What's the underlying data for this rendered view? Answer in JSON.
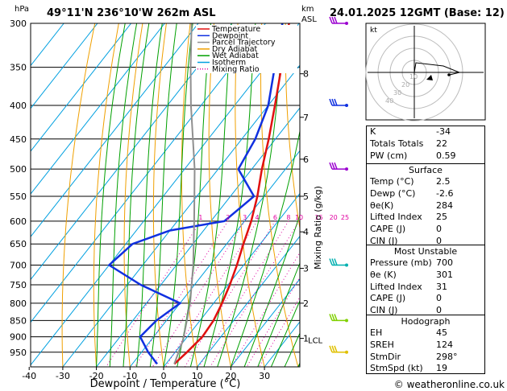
{
  "header": {
    "location": "49°11'N  236°10'W  262m  ASL",
    "datetime": "24.01.2025  12GMT  (Base: 12)",
    "pressure_unit": "hPa",
    "height_unit": "km",
    "height_unit2": "ASL",
    "footer": "© weatheronline.co.uk"
  },
  "chart_data": {
    "type": "line",
    "title": "Skew-T log-P diagram",
    "xlabel": "Dewpoint / Temperature (°C)",
    "ylabel_right": "Mixing Ratio (g/kg)",
    "x_ticks": [
      -40,
      -30,
      -20,
      -10,
      0,
      10,
      20,
      30
    ],
    "pressure_levels": [
      300,
      350,
      400,
      450,
      500,
      550,
      600,
      650,
      700,
      750,
      800,
      850,
      900,
      950
    ],
    "height_km_ticks": [
      {
        "label": "8",
        "p": 358
      },
      {
        "label": "7",
        "p": 417
      },
      {
        "label": "6",
        "p": 483
      },
      {
        "label": "5",
        "p": 550
      },
      {
        "label": "4",
        "p": 623
      },
      {
        "label": "3",
        "p": 708
      },
      {
        "label": "2",
        "p": 800
      },
      {
        "label": "1",
        "p": 905
      }
    ],
    "lcl": {
      "label": "LCL",
      "p": 910
    },
    "mixing_ratio_labels": [
      "1",
      "2",
      "3",
      "4",
      "6",
      "8",
      "10",
      "15",
      "20",
      "25"
    ],
    "mixing_ratio_values": [
      1,
      2,
      3,
      4,
      6,
      8,
      10,
      15,
      20,
      25
    ],
    "legend": [
      {
        "name": "Temperature",
        "color": "#e01010"
      },
      {
        "name": "Dewpoint",
        "color": "#1030e0"
      },
      {
        "name": "Parcel Trajectory",
        "color": "#909090"
      },
      {
        "name": "Dry Adiabat",
        "color": "#f0a000"
      },
      {
        "name": "Wet Adiabat",
        "color": "#00a000"
      },
      {
        "name": "Isotherm",
        "color": "#00a0e0"
      },
      {
        "name": "Mixing Ratio",
        "color": "#e000a0"
      }
    ],
    "series": [
      {
        "name": "Temperature",
        "color": "#e01010",
        "points": [
          [
            2.5,
            990
          ],
          [
            3.5,
            950
          ],
          [
            4.5,
            900
          ],
          [
            4.0,
            850
          ],
          [
            2.5,
            800
          ],
          [
            0.5,
            750
          ],
          [
            -2,
            700
          ],
          [
            -5,
            650
          ],
          [
            -8,
            600
          ],
          [
            -12,
            550
          ],
          [
            -17,
            500
          ],
          [
            -22,
            450
          ],
          [
            -28,
            400
          ],
          [
            -35,
            350
          ],
          [
            -43,
            300
          ]
        ]
      },
      {
        "name": "Dewpoint",
        "color": "#1030e0",
        "points": [
          [
            -2.6,
            990
          ],
          [
            -8,
            950
          ],
          [
            -14,
            900
          ],
          [
            -13,
            850
          ],
          [
            -10,
            800
          ],
          [
            -26,
            750
          ],
          [
            -40,
            700
          ],
          [
            -38,
            650
          ],
          [
            -30,
            620
          ],
          [
            -16,
            600
          ],
          [
            -13,
            550
          ],
          [
            -24,
            500
          ],
          [
            -26,
            450
          ],
          [
            -30,
            400
          ],
          [
            -37,
            350
          ],
          [
            -45,
            300
          ]
        ]
      },
      {
        "name": "Parcel Trajectory",
        "color": "#909090",
        "points": [
          [
            2.5,
            990
          ],
          [
            -0.5,
            910
          ],
          [
            -7,
            800
          ],
          [
            -15,
            700
          ],
          [
            -25,
            600
          ],
          [
            -37,
            500
          ],
          [
            -53,
            400
          ],
          [
            -62,
            350
          ],
          [
            -72,
            300
          ]
        ]
      }
    ]
  },
  "hodograph": {
    "label": "kt",
    "ring_labels": [
      "10",
      "20",
      "30",
      "40"
    ]
  },
  "indices": {
    "rows": [
      {
        "k": "K",
        "v": "-34"
      },
      {
        "k": "Totals Totals",
        "v": "22"
      },
      {
        "k": "PW (cm)",
        "v": "0.59"
      }
    ]
  },
  "surface": {
    "title": "Surface",
    "rows": [
      {
        "k": "Temp (°C)",
        "v": "2.5"
      },
      {
        "k": "Dewp (°C)",
        "v": "-2.6"
      },
      {
        "k": "θe(K)",
        "v": "284"
      },
      {
        "k": "Lifted Index",
        "v": "25"
      },
      {
        "k": "CAPE (J)",
        "v": "0"
      },
      {
        "k": "CIN (J)",
        "v": "0"
      }
    ]
  },
  "most_unstable": {
    "title": "Most Unstable",
    "rows": [
      {
        "k": "Pressure (mb)",
        "v": "700"
      },
      {
        "k": "θe (K)",
        "v": "301"
      },
      {
        "k": "Lifted Index",
        "v": "31"
      },
      {
        "k": "CAPE (J)",
        "v": "0"
      },
      {
        "k": "CIN (J)",
        "v": "0"
      }
    ]
  },
  "hodo_table": {
    "title": "Hodograph",
    "rows": [
      {
        "k": "EH",
        "v": "45"
      },
      {
        "k": "SREH",
        "v": "124"
      },
      {
        "k": "StmDir",
        "v": "298°"
      },
      {
        "k": "StmSpd (kt)",
        "v": "19"
      }
    ]
  }
}
